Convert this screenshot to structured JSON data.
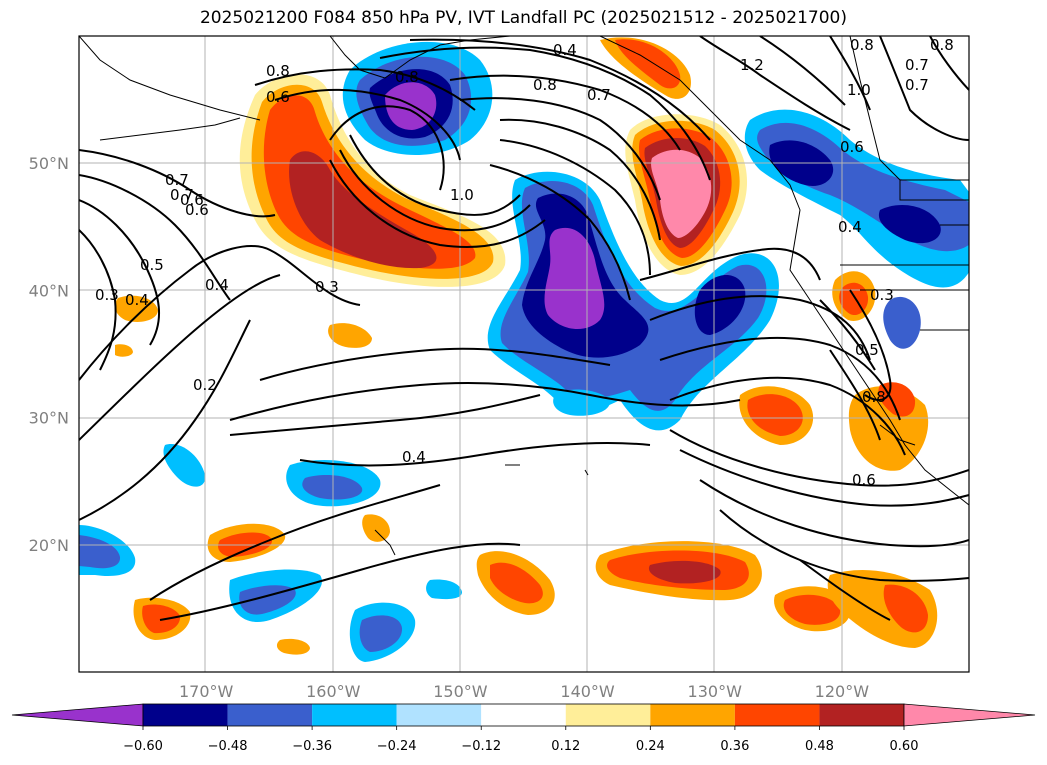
{
  "title": "2025021200 F084 850 hPa PV, IVT Landfall PC (2025021512 - 2025021700)",
  "map": {
    "lon_ticks": [
      {
        "lon": -170,
        "label": "170°W"
      },
      {
        "lon": -160,
        "label": "160°W"
      },
      {
        "lon": -150,
        "label": "150°W"
      },
      {
        "lon": -140,
        "label": "140°W"
      },
      {
        "lon": -130,
        "label": "130°W"
      },
      {
        "lon": -120,
        "label": "120°W"
      }
    ],
    "lat_ticks": [
      {
        "lat": 50,
        "label": "50°N"
      },
      {
        "lat": 40,
        "label": "40°N"
      },
      {
        "lat": 30,
        "label": "30°N"
      },
      {
        "lat": 20,
        "label": "20°N"
      }
    ],
    "contour_labels": [
      "0.4",
      "0.8",
      "0.8",
      "0.7",
      "1.2",
      "0.8",
      "1.0",
      "0.7",
      "0.8",
      "0.7",
      "0.6",
      "0.8",
      "0.7",
      "0.6",
      "1.0",
      "0.6",
      "0.4",
      "0.7",
      "0.6",
      "0.5",
      "0.4",
      "0.3",
      "0.3",
      "0.4",
      "0.2",
      "0.3",
      "0.5",
      "0.8",
      "0.4",
      "0.6"
    ]
  },
  "colorbar": {
    "colors": [
      "#9932cc",
      "#00008b",
      "#3a5fcd",
      "#00bfff",
      "#b0e2ff",
      "#ffffff",
      "#ffee99",
      "#ffa500",
      "#ff4500",
      "#b22222",
      "#ff88aa"
    ],
    "labels": [
      "−0.60",
      "−0.48",
      "−0.36",
      "−0.24",
      "−0.12",
      "0.12",
      "0.24",
      "0.36",
      "0.48",
      "0.60"
    ]
  }
}
